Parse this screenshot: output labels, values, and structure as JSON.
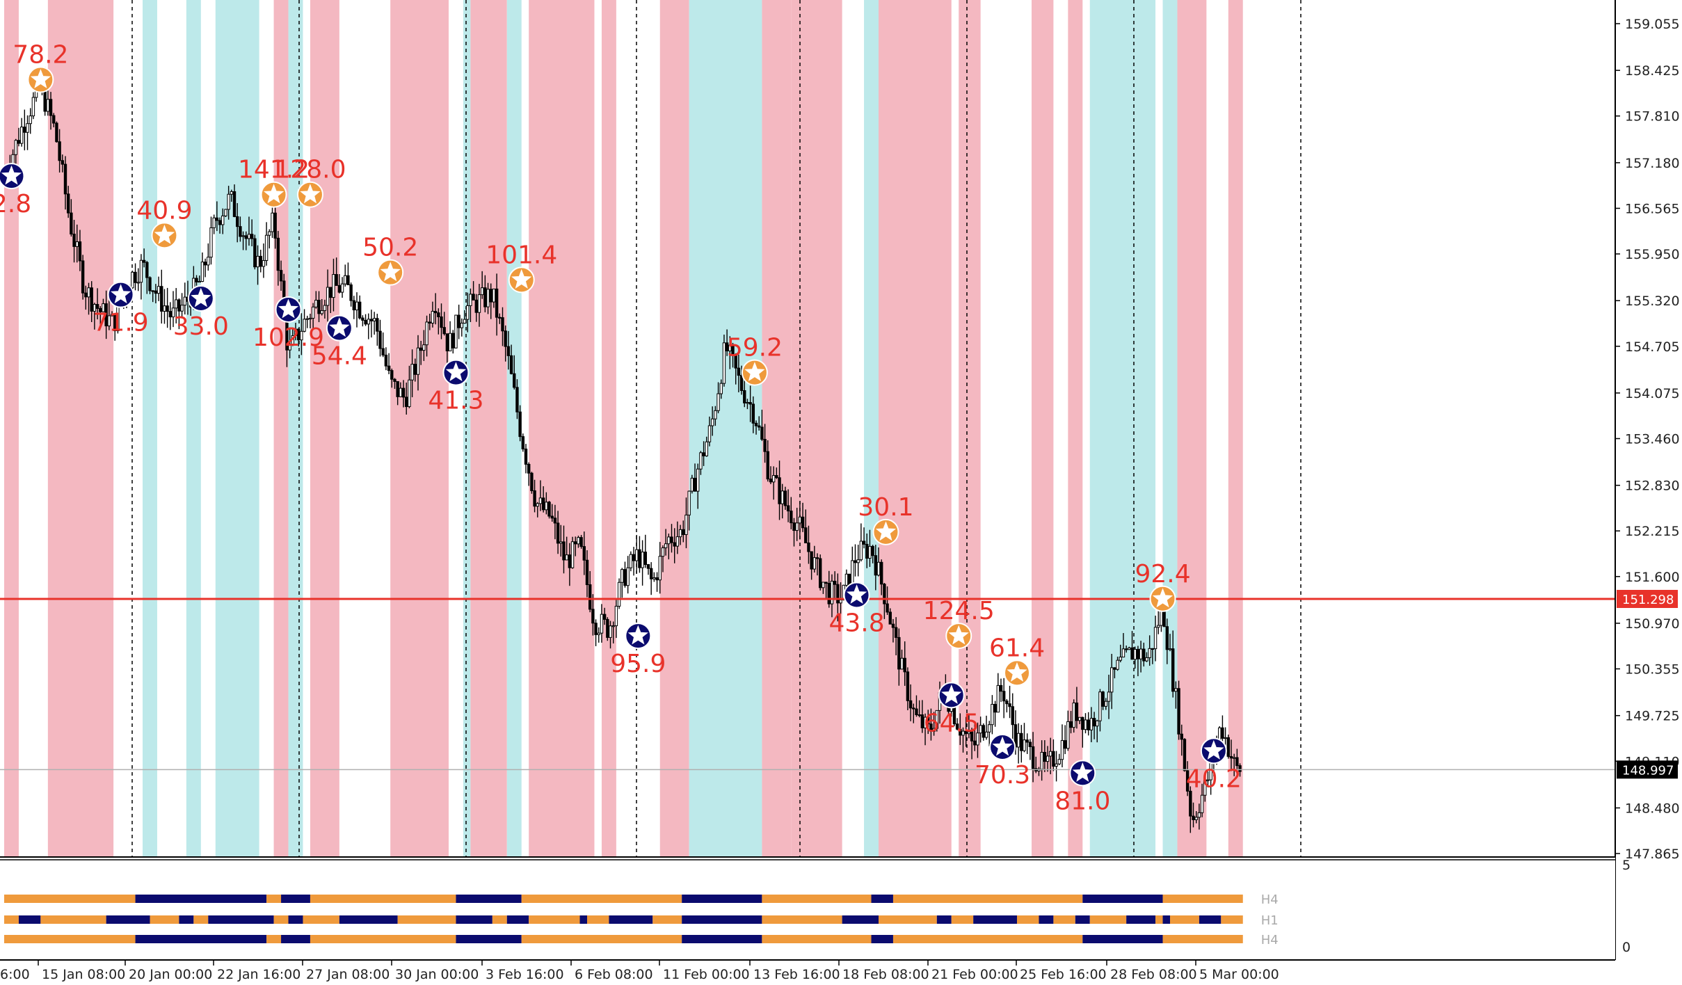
{
  "chart_data": {
    "type": "candlestick",
    "y_axis_ticks": [
      "159.055",
      "158.425",
      "157.810",
      "157.180",
      "156.565",
      "155.950",
      "155.320",
      "154.705",
      "154.075",
      "153.460",
      "152.830",
      "152.215",
      "151.600",
      "150.970",
      "150.355",
      "149.725",
      "149.110",
      "148.480",
      "147.865"
    ],
    "ylim": [
      147.865,
      159.055
    ],
    "time_axis_labels": [
      "6:00",
      "15 Jan 08:00",
      "20 Jan 00:00",
      "22 Jan 16:00",
      "27 Jan 08:00",
      "30 Jan 00:00",
      "3 Feb 16:00",
      "6 Feb 08:00",
      "11 Feb 00:00",
      "13 Feb 16:00",
      "18 Feb 08:00",
      "21 Feb 00:00",
      "25 Feb 16:00",
      "28 Feb 08:00",
      "5 Mar 00:00"
    ],
    "price_lines": [
      {
        "name": "level",
        "value": 151.298,
        "label": "151.298",
        "color": "#e8322a"
      },
      {
        "name": "bid",
        "value": 148.997,
        "label": "148.997",
        "color": "#000000"
      }
    ],
    "close_path": [
      [
        0,
        157.0
      ],
      [
        1.5,
        157.8
      ],
      [
        2.5,
        158.2
      ],
      [
        3.5,
        157.6
      ],
      [
        4.5,
        156.4
      ],
      [
        5.5,
        155.5
      ],
      [
        6.5,
        155.2
      ],
      [
        7.5,
        155.0
      ],
      [
        8.5,
        155.6
      ],
      [
        9.5,
        155.8
      ],
      [
        10.5,
        155.4
      ],
      [
        11.5,
        155.1
      ],
      [
        12.5,
        155.3
      ],
      [
        13.5,
        155.6
      ],
      [
        14.5,
        156.4
      ],
      [
        15.5,
        156.7
      ],
      [
        16.5,
        156.2
      ],
      [
        17.5,
        155.8
      ],
      [
        18.5,
        156.4
      ],
      [
        19.5,
        154.6
      ],
      [
        20.5,
        155.0
      ],
      [
        21.5,
        155.3
      ],
      [
        22.5,
        155.5
      ],
      [
        23.5,
        155.5
      ],
      [
        24.5,
        155.2
      ],
      [
        25.5,
        155.0
      ],
      [
        26.5,
        154.2
      ],
      [
        27.5,
        154.0
      ],
      [
        28.5,
        154.6
      ],
      [
        29.5,
        155.4
      ],
      [
        30.5,
        154.7
      ],
      [
        31.5,
        155.2
      ],
      [
        32.5,
        155.3
      ],
      [
        33.5,
        155.4
      ],
      [
        34.5,
        154.6
      ],
      [
        35.5,
        153.5
      ],
      [
        36.5,
        152.6
      ],
      [
        37.5,
        152.4
      ],
      [
        38.5,
        151.8
      ],
      [
        39.5,
        152.0
      ],
      [
        40.5,
        151.0
      ],
      [
        41.5,
        150.9
      ],
      [
        42.5,
        151.6
      ],
      [
        43.5,
        151.9
      ],
      [
        44.5,
        151.5
      ],
      [
        45.5,
        152.1
      ],
      [
        46.5,
        152.2
      ],
      [
        47.5,
        153.0
      ],
      [
        48.5,
        153.6
      ],
      [
        49.5,
        154.7
      ],
      [
        50.5,
        154.2
      ],
      [
        51.5,
        153.8
      ],
      [
        52.5,
        153.0
      ],
      [
        53.5,
        152.6
      ],
      [
        54.5,
        152.3
      ],
      [
        55.5,
        151.8
      ],
      [
        56.5,
        151.4
      ],
      [
        57.5,
        151.3
      ],
      [
        58.5,
        151.9
      ],
      [
        59.5,
        152.0
      ],
      [
        60.5,
        151.3
      ],
      [
        61.5,
        150.4
      ],
      [
        62.5,
        149.7
      ],
      [
        63.5,
        149.5
      ],
      [
        64.5,
        150.1
      ],
      [
        65.5,
        149.6
      ],
      [
        66.5,
        149.3
      ],
      [
        67.5,
        149.7
      ],
      [
        68.5,
        150.1
      ],
      [
        69.5,
        149.4
      ],
      [
        70.5,
        149.2
      ],
      [
        71.5,
        149.0
      ],
      [
        72.5,
        149.3
      ],
      [
        73.5,
        149.8
      ],
      [
        74.5,
        149.6
      ],
      [
        75.5,
        150.0
      ],
      [
        76.5,
        150.4
      ],
      [
        77.5,
        150.6
      ],
      [
        78.5,
        150.5
      ],
      [
        79.5,
        151.2
      ],
      [
        80.5,
        149.8
      ],
      [
        81.5,
        148.3
      ],
      [
        82.5,
        148.8
      ],
      [
        83.5,
        149.6
      ],
      [
        84.5,
        149.0
      ]
    ],
    "stars": [
      {
        "label": "78.2",
        "kind": "orange",
        "i": 2.5,
        "price": 158.3,
        "pos": "above"
      },
      {
        "label": "2.8",
        "kind": "navy",
        "i": 0.5,
        "price": 157.0,
        "pos": "below"
      },
      {
        "label": "40.9",
        "kind": "orange",
        "i": 11,
        "price": 156.2,
        "pos": "above"
      },
      {
        "label": "71.9",
        "kind": "navy",
        "i": 8,
        "price": 155.4,
        "pos": "below"
      },
      {
        "label": "33.0",
        "kind": "navy",
        "i": 13.5,
        "price": 155.35,
        "pos": "below"
      },
      {
        "label": "141.2",
        "kind": "orange",
        "i": 18.5,
        "price": 156.75,
        "pos": "above"
      },
      {
        "label": "128.0",
        "kind": "orange",
        "i": 21,
        "price": 156.75,
        "pos": "above"
      },
      {
        "label": "102.9",
        "kind": "navy",
        "i": 19.5,
        "price": 155.2,
        "pos": "below"
      },
      {
        "label": "54.4",
        "kind": "navy",
        "i": 23,
        "price": 154.95,
        "pos": "below"
      },
      {
        "label": "50.2",
        "kind": "orange",
        "i": 26.5,
        "price": 155.7,
        "pos": "above"
      },
      {
        "label": "41.3",
        "kind": "navy",
        "i": 31,
        "price": 154.35,
        "pos": "below"
      },
      {
        "label": "101.4",
        "kind": "orange",
        "i": 35.5,
        "price": 155.6,
        "pos": "above"
      },
      {
        "label": "95.9",
        "kind": "navy",
        "i": 43.5,
        "price": 150.8,
        "pos": "below"
      },
      {
        "label": "59.2",
        "kind": "orange",
        "i": 51.5,
        "price": 154.35,
        "pos": "above"
      },
      {
        "label": "30.1",
        "kind": "orange",
        "i": 60.5,
        "price": 152.2,
        "pos": "above"
      },
      {
        "label": "43.8",
        "kind": "navy",
        "i": 58.5,
        "price": 151.35,
        "pos": "below"
      },
      {
        "label": "124.5",
        "kind": "orange",
        "i": 65.5,
        "price": 150.8,
        "pos": "above"
      },
      {
        "label": "64.5",
        "kind": "navy",
        "i": 65,
        "price": 150.0,
        "pos": "below"
      },
      {
        "label": "61.4",
        "kind": "orange",
        "i": 69.5,
        "price": 150.3,
        "pos": "above"
      },
      {
        "label": "70.3",
        "kind": "navy",
        "i": 68.5,
        "price": 149.3,
        "pos": "below"
      },
      {
        "label": "81.0",
        "kind": "navy",
        "i": 74,
        "price": 148.95,
        "pos": "below"
      },
      {
        "label": "92.4",
        "kind": "orange",
        "i": 79.5,
        "price": 151.3,
        "pos": "above"
      },
      {
        "label": "40.2",
        "kind": "navy",
        "i": 83,
        "price": 149.25,
        "pos": "below"
      }
    ],
    "indicator": {
      "y_ticks": [
        "5",
        "0"
      ],
      "rows": [
        {
          "label": "H4",
          "segments": [
            [
              "orange",
              0,
              9
            ],
            [
              "navy",
              9,
              18
            ],
            [
              "orange",
              18,
              19
            ],
            [
              "navy",
              19,
              21
            ],
            [
              "orange",
              21,
              31
            ],
            [
              "navy",
              31,
              35.5
            ],
            [
              "orange",
              35.5,
              46.5
            ],
            [
              "navy",
              46.5,
              52
            ],
            [
              "orange",
              52,
              59.5
            ],
            [
              "navy",
              59.5,
              61
            ],
            [
              "orange",
              61,
              74
            ],
            [
              "navy",
              74,
              79.5
            ],
            [
              "orange",
              79.5,
              85
            ]
          ]
        },
        {
          "label": "H1",
          "segments": [
            [
              "orange",
              0,
              1
            ],
            [
              "navy",
              1,
              2.5
            ],
            [
              "orange",
              2.5,
              7
            ],
            [
              "navy",
              7,
              10
            ],
            [
              "orange",
              10,
              12
            ],
            [
              "navy",
              12,
              13
            ],
            [
              "orange",
              13,
              14
            ],
            [
              "navy",
              14,
              18.5
            ],
            [
              "orange",
              18.5,
              19.5
            ],
            [
              "navy",
              19.5,
              20.5
            ],
            [
              "orange",
              20.5,
              23
            ],
            [
              "navy",
              23,
              27
            ],
            [
              "orange",
              27,
              31
            ],
            [
              "navy",
              31,
              33.5
            ],
            [
              "orange",
              33.5,
              34.5
            ],
            [
              "navy",
              34.5,
              36
            ],
            [
              "orange",
              36,
              39.5
            ],
            [
              "navy",
              39.5,
              40
            ],
            [
              "orange",
              40,
              41.5
            ],
            [
              "navy",
              41.5,
              44.5
            ],
            [
              "orange",
              44.5,
              46.5
            ],
            [
              "navy",
              46.5,
              52
            ],
            [
              "orange",
              52,
              57.5
            ],
            [
              "navy",
              57.5,
              60
            ],
            [
              "orange",
              60,
              64
            ],
            [
              "navy",
              64,
              65
            ],
            [
              "orange",
              65,
              66.5
            ],
            [
              "navy",
              66.5,
              69.5
            ],
            [
              "orange",
              69.5,
              71
            ],
            [
              "navy",
              71,
              72
            ],
            [
              "orange",
              72,
              73.5
            ],
            [
              "navy",
              73.5,
              74.5
            ],
            [
              "orange",
              74.5,
              77
            ],
            [
              "navy",
              77,
              79
            ],
            [
              "orange",
              79,
              79.5
            ],
            [
              "navy",
              79.5,
              80
            ],
            [
              "orange",
              80,
              82
            ],
            [
              "navy",
              82,
              83.5
            ],
            [
              "orange",
              83.5,
              85
            ]
          ]
        },
        {
          "label": "H4",
          "segments": [
            [
              "orange",
              0,
              9
            ],
            [
              "navy",
              9,
              18
            ],
            [
              "orange",
              18,
              19
            ],
            [
              "navy",
              19,
              21
            ],
            [
              "orange",
              21,
              31
            ],
            [
              "navy",
              31,
              35.5
            ],
            [
              "orange",
              35.5,
              46.5
            ],
            [
              "navy",
              46.5,
              52
            ],
            [
              "orange",
              52,
              59.5
            ],
            [
              "navy",
              59.5,
              61
            ],
            [
              "orange",
              61,
              74
            ],
            [
              "navy",
              74,
              79.5
            ],
            [
              "orange",
              79.5,
              85
            ]
          ]
        }
      ]
    },
    "background_bands": [
      [
        "pink",
        0,
        1
      ],
      [
        "pink",
        3,
        7.5
      ],
      [
        "cyan",
        9.5,
        10.5
      ],
      [
        "cyan",
        12.5,
        13.5
      ],
      [
        "cyan",
        14.5,
        17.5
      ],
      [
        "pink",
        18.5,
        19.5
      ],
      [
        "cyan",
        19.5,
        20.5
      ],
      [
        "pink",
        21,
        23
      ],
      [
        "pink",
        26.5,
        30.5
      ],
      [
        "cyan",
        31.5,
        32
      ],
      [
        "pink",
        32,
        34.5
      ],
      [
        "cyan",
        34.5,
        35.5
      ],
      [
        "pink",
        36,
        40.5
      ],
      [
        "pink",
        41,
        42
      ],
      [
        "pink",
        45,
        47
      ],
      [
        "cyan",
        47,
        52
      ],
      [
        "pink",
        52,
        54
      ],
      [
        "pink",
        54,
        57.5
      ],
      [
        "cyan",
        59,
        60
      ],
      [
        "pink",
        60,
        65
      ],
      [
        "pink",
        65.5,
        67
      ],
      [
        "pink",
        70.5,
        72
      ],
      [
        "pink",
        73,
        74
      ],
      [
        "cyan",
        74.5,
        79
      ],
      [
        "cyan",
        79.5,
        80.5
      ],
      [
        "pink",
        80.5,
        82.5
      ],
      [
        "pink",
        84,
        85
      ]
    ],
    "colors": {
      "pink": "#f4b8c1",
      "cyan": "#bde9ea",
      "orange": "#ef9a3c",
      "navy": "#0b0b6e",
      "red": "#e8322a",
      "label_red": "#e8322a"
    }
  }
}
